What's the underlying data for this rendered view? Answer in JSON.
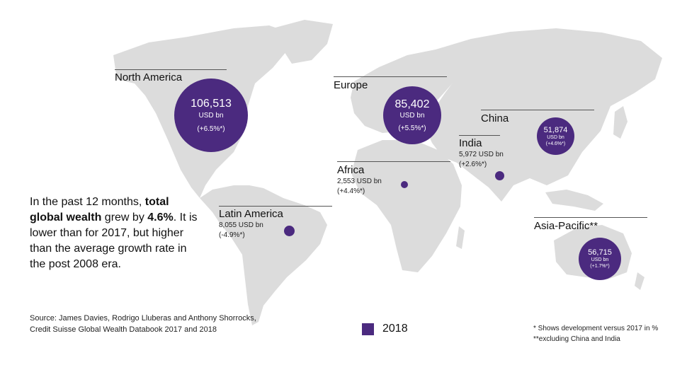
{
  "regions": [
    {
      "id": "north-america",
      "name": "North America",
      "value": "106,513",
      "unit": "USD bn",
      "change": "(+6.5%*)"
    },
    {
      "id": "europe",
      "name": "Europe",
      "value": "85,402",
      "unit": "USD bn",
      "change": "(+5.5%*)"
    },
    {
      "id": "china",
      "name": "China",
      "value": "51,874",
      "unit": "USD bn",
      "change": "(+4.6%*)"
    },
    {
      "id": "india",
      "name": "India",
      "value_line": "5,972 USD bn",
      "change": "(+2.6%*)"
    },
    {
      "id": "africa",
      "name": "Africa",
      "value_line": "2,553 USD bn",
      "change": "(+4.4%*)"
    },
    {
      "id": "latin-america",
      "name": "Latin America",
      "value_line": "8,055 USD bn",
      "change": "(-4.9%*)"
    },
    {
      "id": "asia-pacific",
      "name": "Asia-Pacific**",
      "value": "56,715",
      "unit": "USD bn",
      "change": "(+1.7%*)"
    }
  ],
  "summary": {
    "p1": "In the past 12 months, ",
    "b1": "total global wealth",
    "p2": " grew by ",
    "b2": "4.6%",
    "p3": ". It is lower than for 2017, but higher than the average growth rate in the post 2008 era."
  },
  "source": {
    "line1": "Source: James Davies, Rodrigo Lluberas and Anthony Shorrocks,",
    "line2": "Credit Suisse Global Wealth Databook 2017 and 2018"
  },
  "legend": {
    "label": "2018",
    "color": "#4b2a7f"
  },
  "notes": {
    "line1": "* Shows development versus 2017 in %",
    "line2": "**excluding China and India"
  }
}
